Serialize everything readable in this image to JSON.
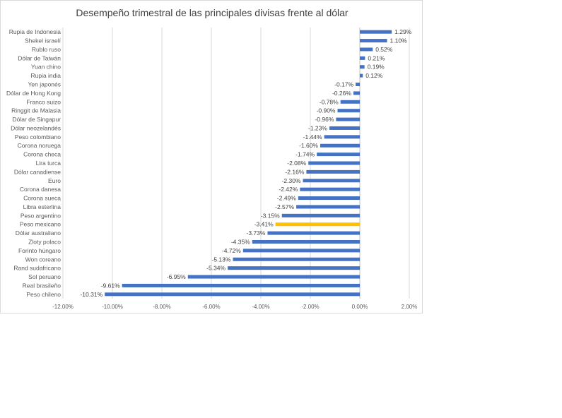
{
  "chart_data": {
    "type": "bar",
    "orientation": "horizontal",
    "title": "Desempeño trimestral de las principales divisas frente al dólar",
    "xlabel": "",
    "ylabel": "",
    "xlim": [
      -12,
      2
    ],
    "x_ticks": [
      "-12.00%",
      "-10.00%",
      "-8.00%",
      "-6.00%",
      "-4.00%",
      "-2.00%",
      "0.00%",
      "2.00%"
    ],
    "x_tick_values": [
      -12,
      -10,
      -8,
      -6,
      -4,
      -2,
      0,
      2
    ],
    "grid": "vertical",
    "legend": "none",
    "colors": {
      "bar": "#4472c4",
      "highlight": "#ffc000",
      "grid": "#d9d9d9",
      "axis": "#bfbfbf"
    },
    "highlight_category": "Peso mexicano",
    "categories": [
      "Rupia de Indonesia",
      "Shekel israelí",
      "Rublo ruso",
      "Dólar de Taiwán",
      "Yuan chino",
      "Rupia india",
      "Yen japonés",
      "Dólar de Hong Kong",
      "Franco suizo",
      "Ringgit de Malasia",
      "Dólar de Singapur",
      "Dólar neozelandés",
      "Peso colombiano",
      "Corona noruega",
      "Corona checa",
      "Lira turca",
      "Dólar canadiense",
      "Euro",
      "Corona danesa",
      "Corona sueca",
      "Libra esterlina",
      "Peso argentino",
      "Peso mexicano",
      "Dólar australiano",
      "Zloty polaco",
      "Forinto húngaro",
      "Won coreano",
      "Rand sudafricano",
      "Sol peruano",
      "Real brasileño",
      "Peso chileno"
    ],
    "values": [
      1.29,
      1.1,
      0.52,
      0.21,
      0.19,
      0.12,
      -0.17,
      -0.26,
      -0.78,
      -0.9,
      -0.96,
      -1.23,
      -1.44,
      -1.6,
      -1.74,
      -2.08,
      -2.16,
      -2.3,
      -2.42,
      -2.49,
      -2.57,
      -3.15,
      -3.41,
      -3.73,
      -4.35,
      -4.72,
      -5.13,
      -5.34,
      -6.95,
      -9.61,
      -10.31
    ],
    "data_labels": [
      "1.29%",
      "1.10%",
      "0.52%",
      "0.21%",
      "0.19%",
      "0.12%",
      "-0.17%",
      "-0.26%",
      "-0.78%",
      "-0.90%",
      "-0.96%",
      "-1.23%",
      "-1.44%",
      "-1.60%",
      "-1.74%",
      "-2.08%",
      "-2.16%",
      "-2.30%",
      "-2.42%",
      "-2.49%",
      "-2.57%",
      "-3.15%",
      "-3.41%",
      "-3.73%",
      "-4.35%",
      "-4.72%",
      "-5.13%",
      "-5.34%",
      "-6.95%",
      "-9.61%",
      "-10.31%"
    ]
  }
}
